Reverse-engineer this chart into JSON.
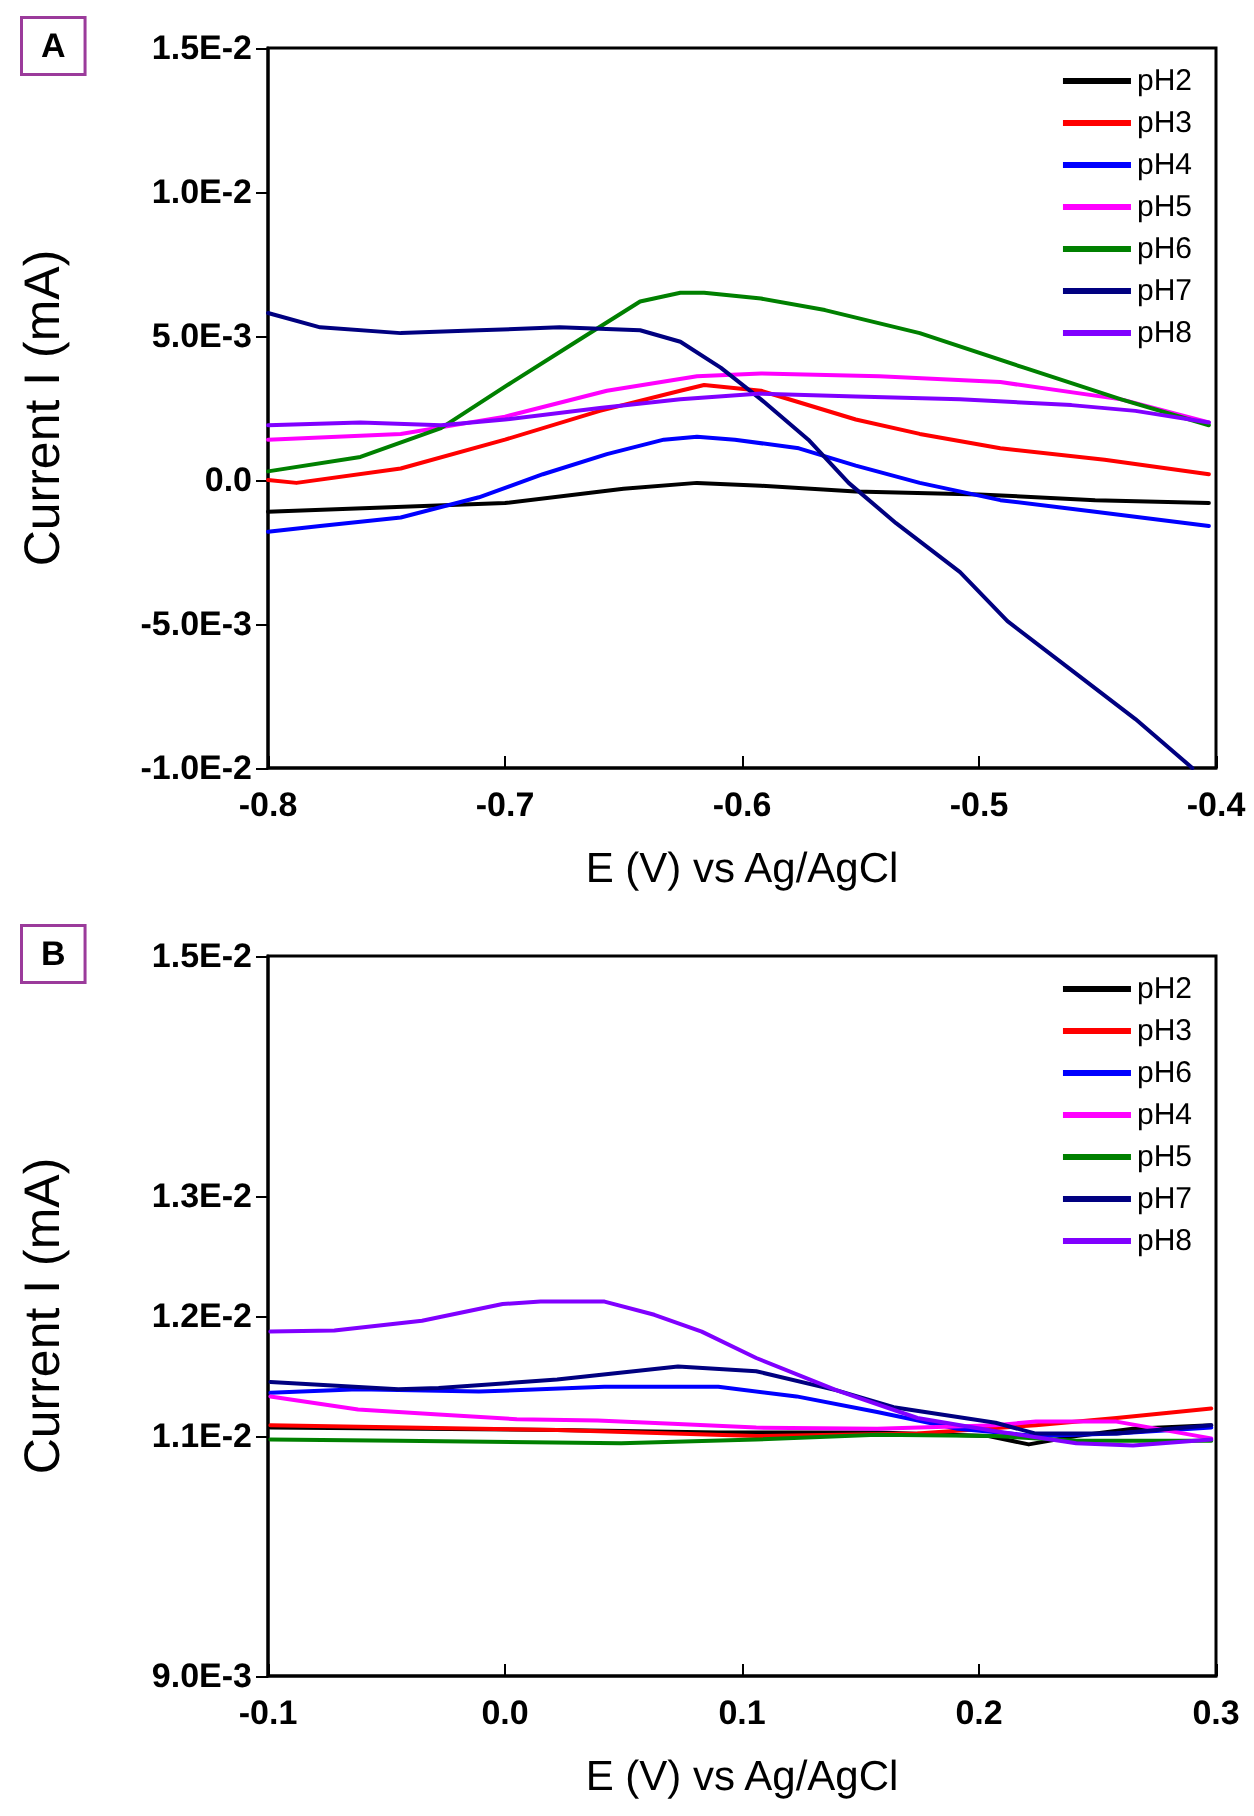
{
  "chart_data": [
    {
      "type": "line",
      "annotations": [
        "A"
      ],
      "xlabel": "E (V) vs Ag/AgCl",
      "ylabel": "Current I (mA)",
      "xlim": [
        -0.8,
        -0.4
      ],
      "xticks": [
        -0.8,
        -0.7,
        -0.6,
        -0.5,
        -0.4
      ],
      "ylim": [
        -0.01,
        0.015
      ],
      "yticks": [
        {
          "value": -0.01,
          "label": "-1.0E-2"
        },
        {
          "value": -0.005,
          "label": "-5.0E-3"
        },
        {
          "value": 0,
          "label": "0.0"
        },
        {
          "value": 0.005,
          "label": "5.0E-3"
        },
        {
          "value": 0.01,
          "label": "1.0E-2"
        },
        {
          "value": 0.015,
          "label": "1.5E-2"
        }
      ],
      "legend": "top right",
      "grid": false,
      "marker": "none",
      "line_style": "solid",
      "series": [
        {
          "name": "pH2",
          "color": "#000000",
          "x": [
            -0.8,
            -0.7,
            -0.65,
            -0.619,
            -0.592,
            -0.552,
            -0.5,
            -0.451,
            -0.403
          ],
          "values": [
            -0.0011,
            -0.0008,
            -0.0003,
            -0.0001,
            -0.0002,
            -0.0004,
            -0.0005,
            -0.0007,
            -0.0008
          ]
        },
        {
          "name": "pH3",
          "color": "#ff0000",
          "x": [
            -0.8,
            -0.788,
            -0.744,
            -0.7,
            -0.66,
            -0.626,
            -0.616,
            -0.592,
            -0.576,
            -0.552,
            -0.525,
            -0.491,
            -0.447,
            -0.403
          ],
          "values": [
            0,
            -0.0001,
            0.0004,
            0.0014,
            0.0024,
            0.0031,
            0.0033,
            0.0031,
            0.0027,
            0.0021,
            0.0016,
            0.0011,
            0.0007,
            0.0002
          ]
        },
        {
          "name": "pH4",
          "color": "#0000ff",
          "x": [
            -0.8,
            -0.778,
            -0.744,
            -0.711,
            -0.684,
            -0.657,
            -0.633,
            -0.619,
            -0.603,
            -0.576,
            -0.552,
            -0.525,
            -0.491,
            -0.451,
            -0.403
          ],
          "values": [
            -0.0018,
            -0.0016,
            -0.0013,
            -0.0006,
            0.0002,
            0.0009,
            0.0014,
            0.0015,
            0.0014,
            0.0011,
            0.0005,
            -0.0001,
            -0.0007,
            -0.0011,
            -0.0016
          ]
        },
        {
          "name": "pH5",
          "color": "#ff00ff",
          "x": [
            -0.8,
            -0.744,
            -0.7,
            -0.657,
            -0.619,
            -0.592,
            -0.542,
            -0.491,
            -0.44,
            -0.403
          ],
          "values": [
            0.0014,
            0.0016,
            0.0022,
            0.0031,
            0.0036,
            0.0037,
            0.0036,
            0.0034,
            0.0028,
            0.002
          ]
        },
        {
          "name": "pH6",
          "color": "#008000",
          "x": [
            -0.8,
            -0.761,
            -0.727,
            -0.697,
            -0.67,
            -0.643,
            -0.626,
            -0.616,
            -0.592,
            -0.565,
            -0.525,
            -0.481,
            -0.44,
            -0.403
          ],
          "values": [
            0.0003,
            0.0008,
            0.0018,
            0.0034,
            0.0048,
            0.0062,
            0.0065,
            0.0065,
            0.0063,
            0.0059,
            0.0051,
            0.0039,
            0.0028,
            0.0019
          ]
        },
        {
          "name": "pH7",
          "color": "#000080",
          "x": [
            -0.8,
            -0.778,
            -0.744,
            -0.711,
            -0.677,
            -0.643,
            -0.626,
            -0.609,
            -0.592,
            -0.572,
            -0.555,
            -0.535,
            -0.508,
            -0.488,
            -0.461,
            -0.434,
            -0.41
          ],
          "values": [
            0.0058,
            0.0053,
            0.0051,
            0.0052,
            0.0053,
            0.0052,
            0.0048,
            0.0039,
            0.0028,
            0.0014,
            -0.0001,
            -0.0015,
            -0.0032,
            -0.0049,
            -0.0066,
            -0.0083,
            -0.01
          ]
        },
        {
          "name": "pH8",
          "color": "#8000ff",
          "x": [
            -0.8,
            -0.761,
            -0.727,
            -0.7,
            -0.66,
            -0.626,
            -0.592,
            -0.552,
            -0.508,
            -0.461,
            -0.434,
            -0.403
          ],
          "values": [
            0.0019,
            0.002,
            0.0019,
            0.0021,
            0.0025,
            0.0028,
            0.003,
            0.0029,
            0.0028,
            0.0026,
            0.0024,
            0.002
          ]
        }
      ]
    },
    {
      "type": "line",
      "annotations": [
        "B"
      ],
      "xlabel": "E (V) vs Ag/AgCl",
      "ylabel": "Current I (mA)",
      "xlim": [
        -0.1,
        0.3
      ],
      "xticks": [
        -0.1,
        {
          "value": 0,
          "label": "0.0"
        },
        0.1,
        0.2,
        0.3
      ],
      "ylim": [
        0.009,
        0.015
      ],
      "yticks": [
        {
          "value": 0.009,
          "label": "9.0E-3"
        },
        {
          "value": 0.011,
          "label": "1.1E-2"
        },
        {
          "value": 0.012,
          "label": "1.2E-2"
        },
        {
          "value": 0.013,
          "label": "1.3E-2"
        },
        {
          "value": 0.015,
          "label": "1.5E-2"
        }
      ],
      "legend": "top right",
      "grid": false,
      "marker": "none",
      "line_style": "solid",
      "series": [
        {
          "name": "pH2",
          "color": "#000000",
          "x": [
            -0.099,
            0.022,
            0.09,
            0.157,
            0.204,
            0.221,
            0.241,
            0.265,
            0.298
          ],
          "values": [
            0.01107,
            0.01105,
            0.01103,
            0.01103,
            0.011,
            0.01093,
            0.011,
            0.01106,
            0.01109
          ]
        },
        {
          "name": "pH3",
          "color": "#ff0000",
          "x": [
            -0.099,
            0.022,
            0.106,
            0.174,
            0.224,
            0.258,
            0.298
          ],
          "values": [
            0.01109,
            0.01105,
            0.011,
            0.01102,
            0.01109,
            0.01115,
            0.01123
          ]
        },
        {
          "name": "pH6",
          "color": "#0000ff",
          "x": [
            -0.099,
            -0.062,
            -0.011,
            0.042,
            0.09,
            0.123,
            0.157,
            0.191,
            0.224,
            0.258,
            0.298
          ],
          "values": [
            0.01136,
            0.01139,
            0.01137,
            0.01141,
            0.01141,
            0.01133,
            0.0112,
            0.01106,
            0.011,
            0.01102,
            0.01107
          ]
        },
        {
          "name": "pH4",
          "color": "#ff00ff",
          "x": [
            -0.099,
            -0.062,
            -0.028,
            0.005,
            0.039,
            0.073,
            0.106,
            0.157,
            0.207,
            0.224,
            0.258,
            0.298
          ],
          "values": [
            0.01133,
            0.01122,
            0.01118,
            0.01114,
            0.01113,
            0.0111,
            0.01107,
            0.01106,
            0.01109,
            0.01112,
            0.01112,
            0.01098
          ]
        },
        {
          "name": "pH5",
          "color": "#008000",
          "x": [
            -0.099,
            -0.045,
            0.049,
            0.106,
            0.157,
            0.207,
            0.241,
            0.298
          ],
          "values": [
            0.01097,
            0.01096,
            0.01094,
            0.01097,
            0.01101,
            0.011,
            0.01096,
            0.01096
          ]
        },
        {
          "name": "pH7",
          "color": "#000080",
          "x": [
            -0.099,
            -0.045,
            -0.028,
            0.022,
            0.073,
            0.106,
            0.14,
            0.164,
            0.207,
            0.224,
            0.258,
            0.298
          ],
          "values": [
            0.01145,
            0.01139,
            0.0114,
            0.01147,
            0.01158,
            0.01154,
            0.01138,
            0.01124,
            0.01111,
            0.01102,
            0.01102,
            0.01109
          ]
        },
        {
          "name": "pH8",
          "color": "#8000ff",
          "x": [
            -0.099,
            -0.072,
            -0.035,
            -0.001,
            0.015,
            0.042,
            0.063,
            0.083,
            0.106,
            0.14,
            0.174,
            0.207,
            0.241,
            0.265,
            0.298
          ],
          "values": [
            0.01187,
            0.01188,
            0.01196,
            0.0121,
            0.01212,
            0.01212,
            0.01201,
            0.01187,
            0.01165,
            0.01138,
            0.01115,
            0.01104,
            0.01094,
            0.01092,
            0.01097
          ]
        }
      ]
    }
  ]
}
